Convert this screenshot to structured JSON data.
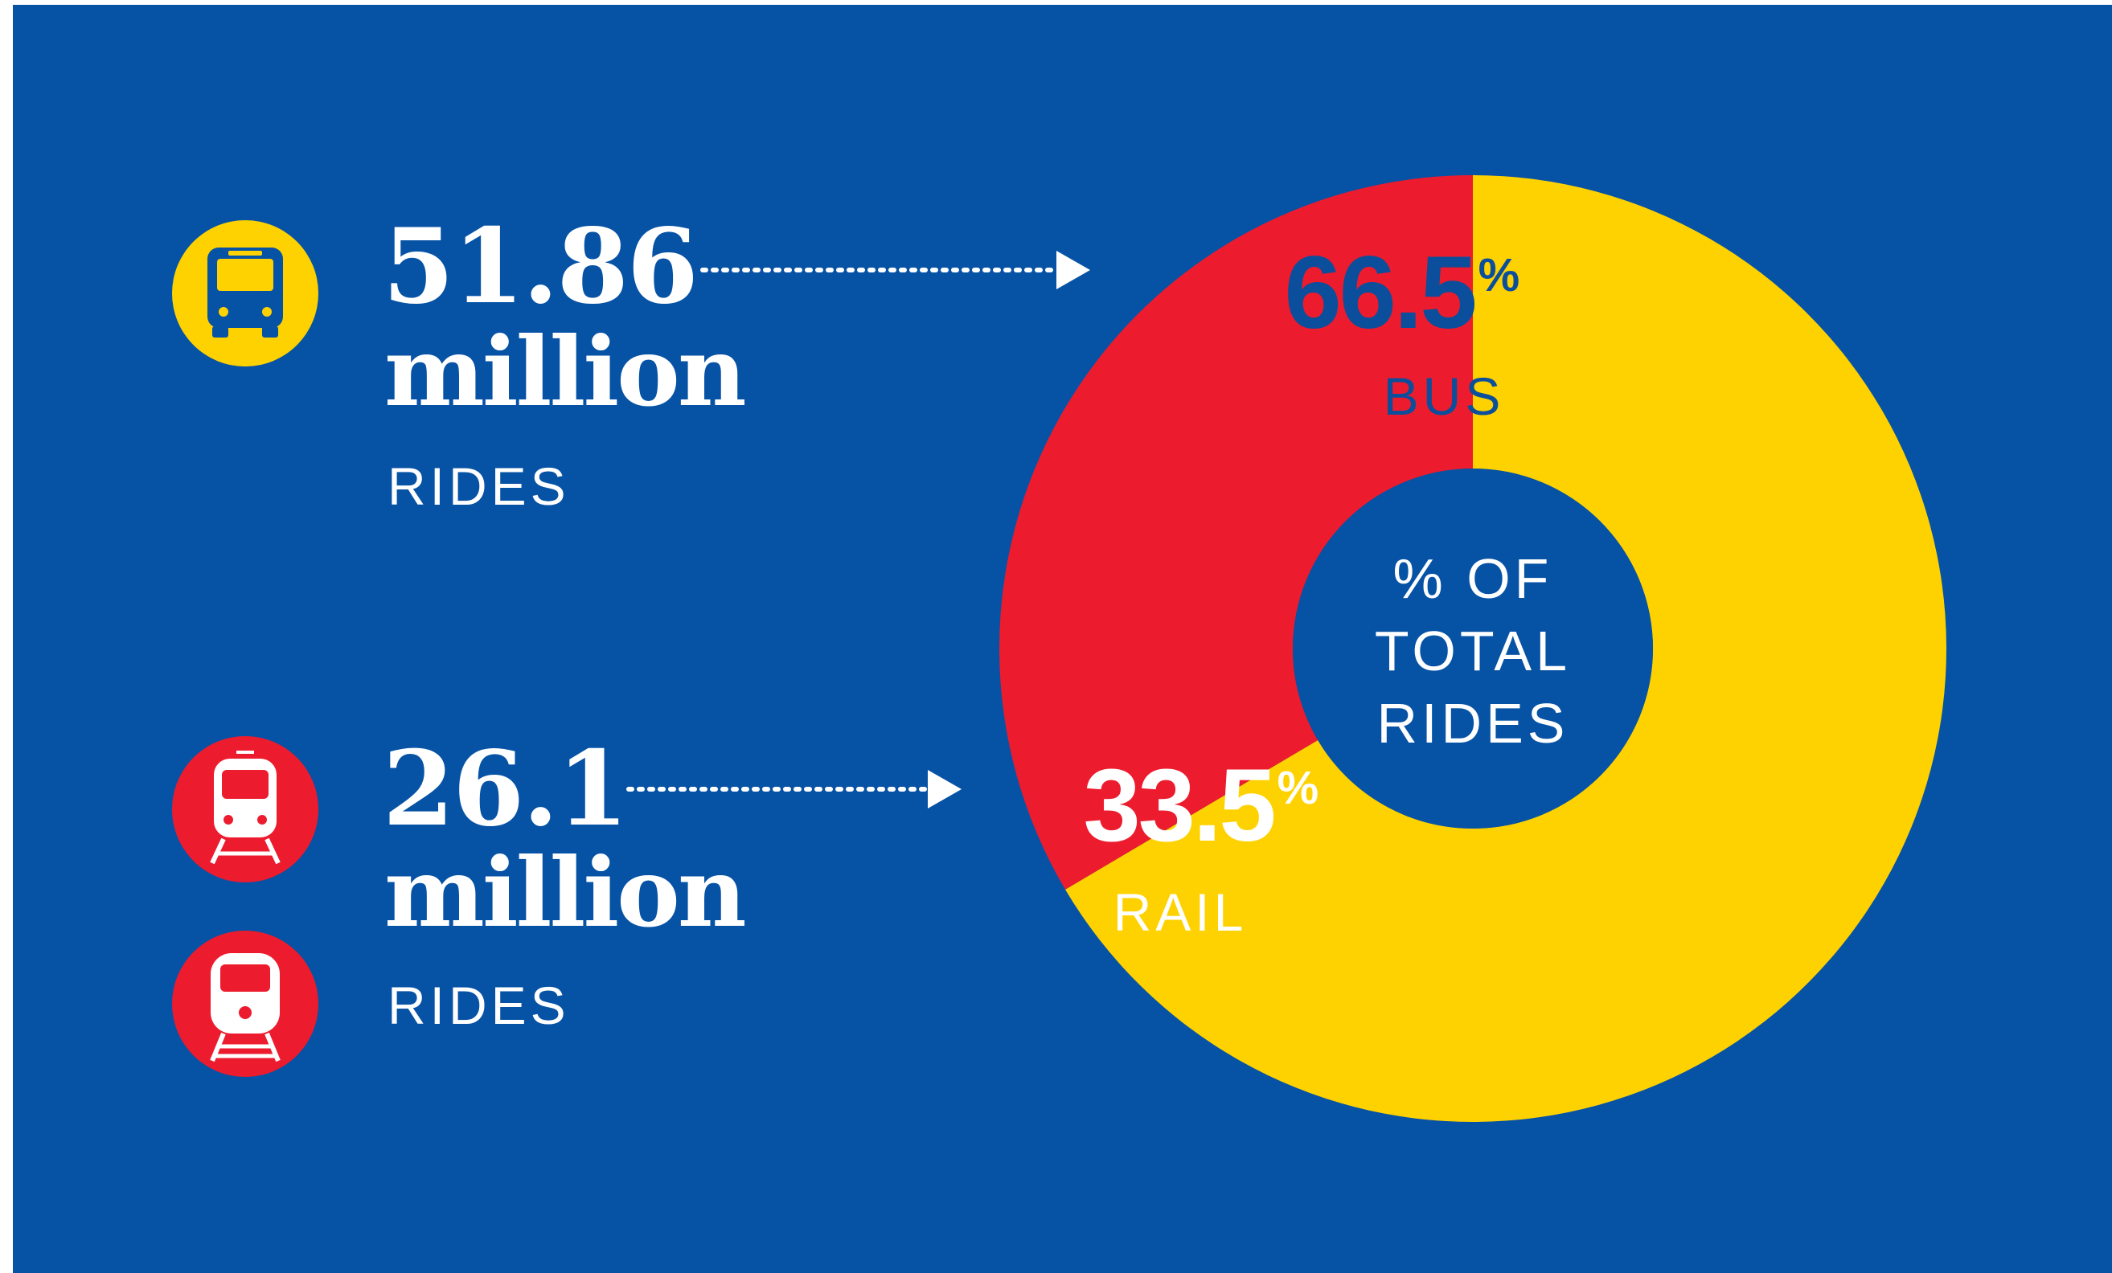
{
  "colors": {
    "background": "#0652A5",
    "bus": "#FED200",
    "rail": "#EC1C2E",
    "text_light": "#FFFFFF",
    "text_dark": "#0B4E9B"
  },
  "bus": {
    "icon": "bus-icon",
    "value": "51.86",
    "unit": "million",
    "label": "RIDES"
  },
  "rail": {
    "icons": [
      "train-icon",
      "commuter-train-icon"
    ],
    "value": "26.1",
    "unit": "million",
    "label": "RIDES"
  },
  "chart_data": {
    "type": "pie",
    "variant": "donut",
    "center_label": [
      "% OF",
      "TOTAL",
      "RIDES"
    ],
    "slices": [
      {
        "label": "BUS",
        "value": 66.5,
        "value_text": "66.5",
        "suffix": "%",
        "color": "#FED200"
      },
      {
        "label": "RAIL",
        "value": 33.5,
        "value_text": "33.5",
        "suffix": "%",
        "color": "#EC1C2E"
      }
    ]
  }
}
